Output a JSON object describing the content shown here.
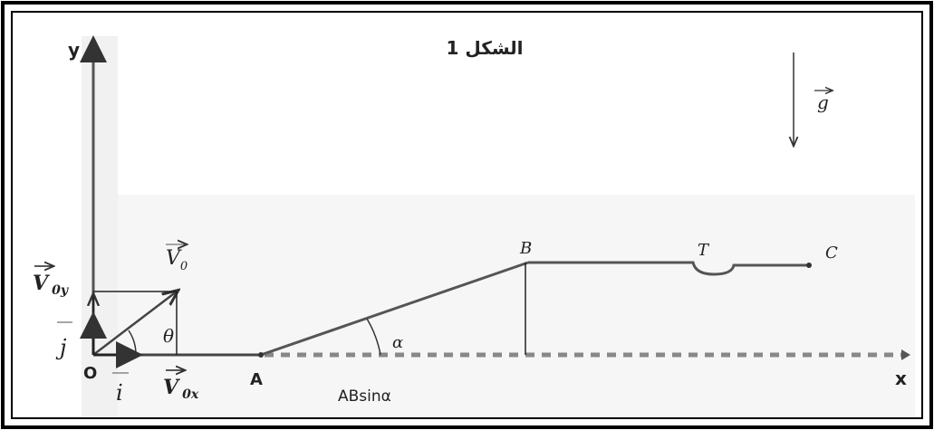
{
  "title": "الشكل 1",
  "axes": {
    "x": "x",
    "y": "y"
  },
  "points": {
    "O": "O",
    "A": "A",
    "B": "B",
    "C": "C",
    "T": "T"
  },
  "vectors": {
    "v0": {
      "symbol": "V",
      "subscript": "0"
    },
    "v0x": {
      "symbol": "V",
      "subscript": "0x"
    },
    "v0y": {
      "symbol": "V",
      "subscript": "0y"
    },
    "i": "i",
    "j": "j",
    "g": "g"
  },
  "angles": {
    "theta": "θ",
    "alpha": "α"
  },
  "height_label": "ABsinα"
}
